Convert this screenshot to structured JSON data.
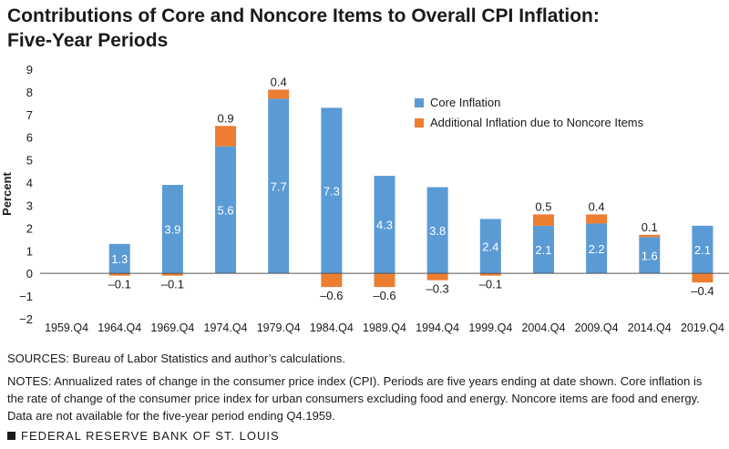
{
  "title": {
    "line1": "Contributions of Core and Noncore Items to Overall CPI Inflation:",
    "line2": "Five-Year Periods"
  },
  "chart_data": {
    "type": "bar",
    "stacked": true,
    "ylabel": "Percent",
    "ylim": [
      -2,
      9
    ],
    "yticks": [
      -2,
      -1,
      0,
      1,
      2,
      3,
      4,
      5,
      6,
      7,
      8,
      9
    ],
    "categories": [
      "1959.Q4",
      "1964.Q4",
      "1969.Q4",
      "1974.Q4",
      "1979.Q4",
      "1984.Q4",
      "1989.Q4",
      "1994.Q4",
      "1999.Q4",
      "2004.Q4",
      "2009.Q4",
      "2014.Q4",
      "2019.Q4"
    ],
    "series": [
      {
        "name": "Core Inflation",
        "color": "#5b9bd5",
        "values": [
          null,
          1.3,
          3.9,
          5.6,
          7.7,
          7.3,
          4.3,
          3.8,
          2.4,
          2.1,
          2.2,
          1.6,
          2.1
        ],
        "labels": [
          "",
          "1.3",
          "3.9",
          "5.6",
          "7.7",
          "7.3",
          "4.3",
          "3.8",
          "2.4",
          "2.1",
          "2.2",
          "1.6",
          "2.1"
        ]
      },
      {
        "name": "Additional Inflation due to Noncore Items",
        "color": "#ed7d31",
        "values": [
          null,
          -0.1,
          -0.1,
          0.9,
          0.4,
          -0.6,
          -0.6,
          -0.3,
          -0.1,
          0.5,
          0.4,
          0.1,
          -0.4
        ],
        "labels": [
          "",
          "–0.1",
          "–0.1",
          "0.9",
          "0.4",
          "–0.6",
          "–0.6",
          "–0.3",
          "–0.1",
          "0.5",
          "0.4",
          "0.1",
          "–0.4"
        ]
      }
    ],
    "legend_position": "top-right",
    "grid": false
  },
  "notes": {
    "sources": "SOURCES: Bureau of Labor Statistics and author’s calculations.",
    "notes": "NOTES: Annualized rates of change in the consumer price index (CPI). Periods are five years ending at date shown. Core inflation is the rate of change of the consumer price index for urban consumers excluding food and energy. Noncore items are food and energy. Data are not available for the five-year period ending Q4.1959."
  },
  "footer": "FEDERAL RESERVE BANK OF ST. LOUIS"
}
